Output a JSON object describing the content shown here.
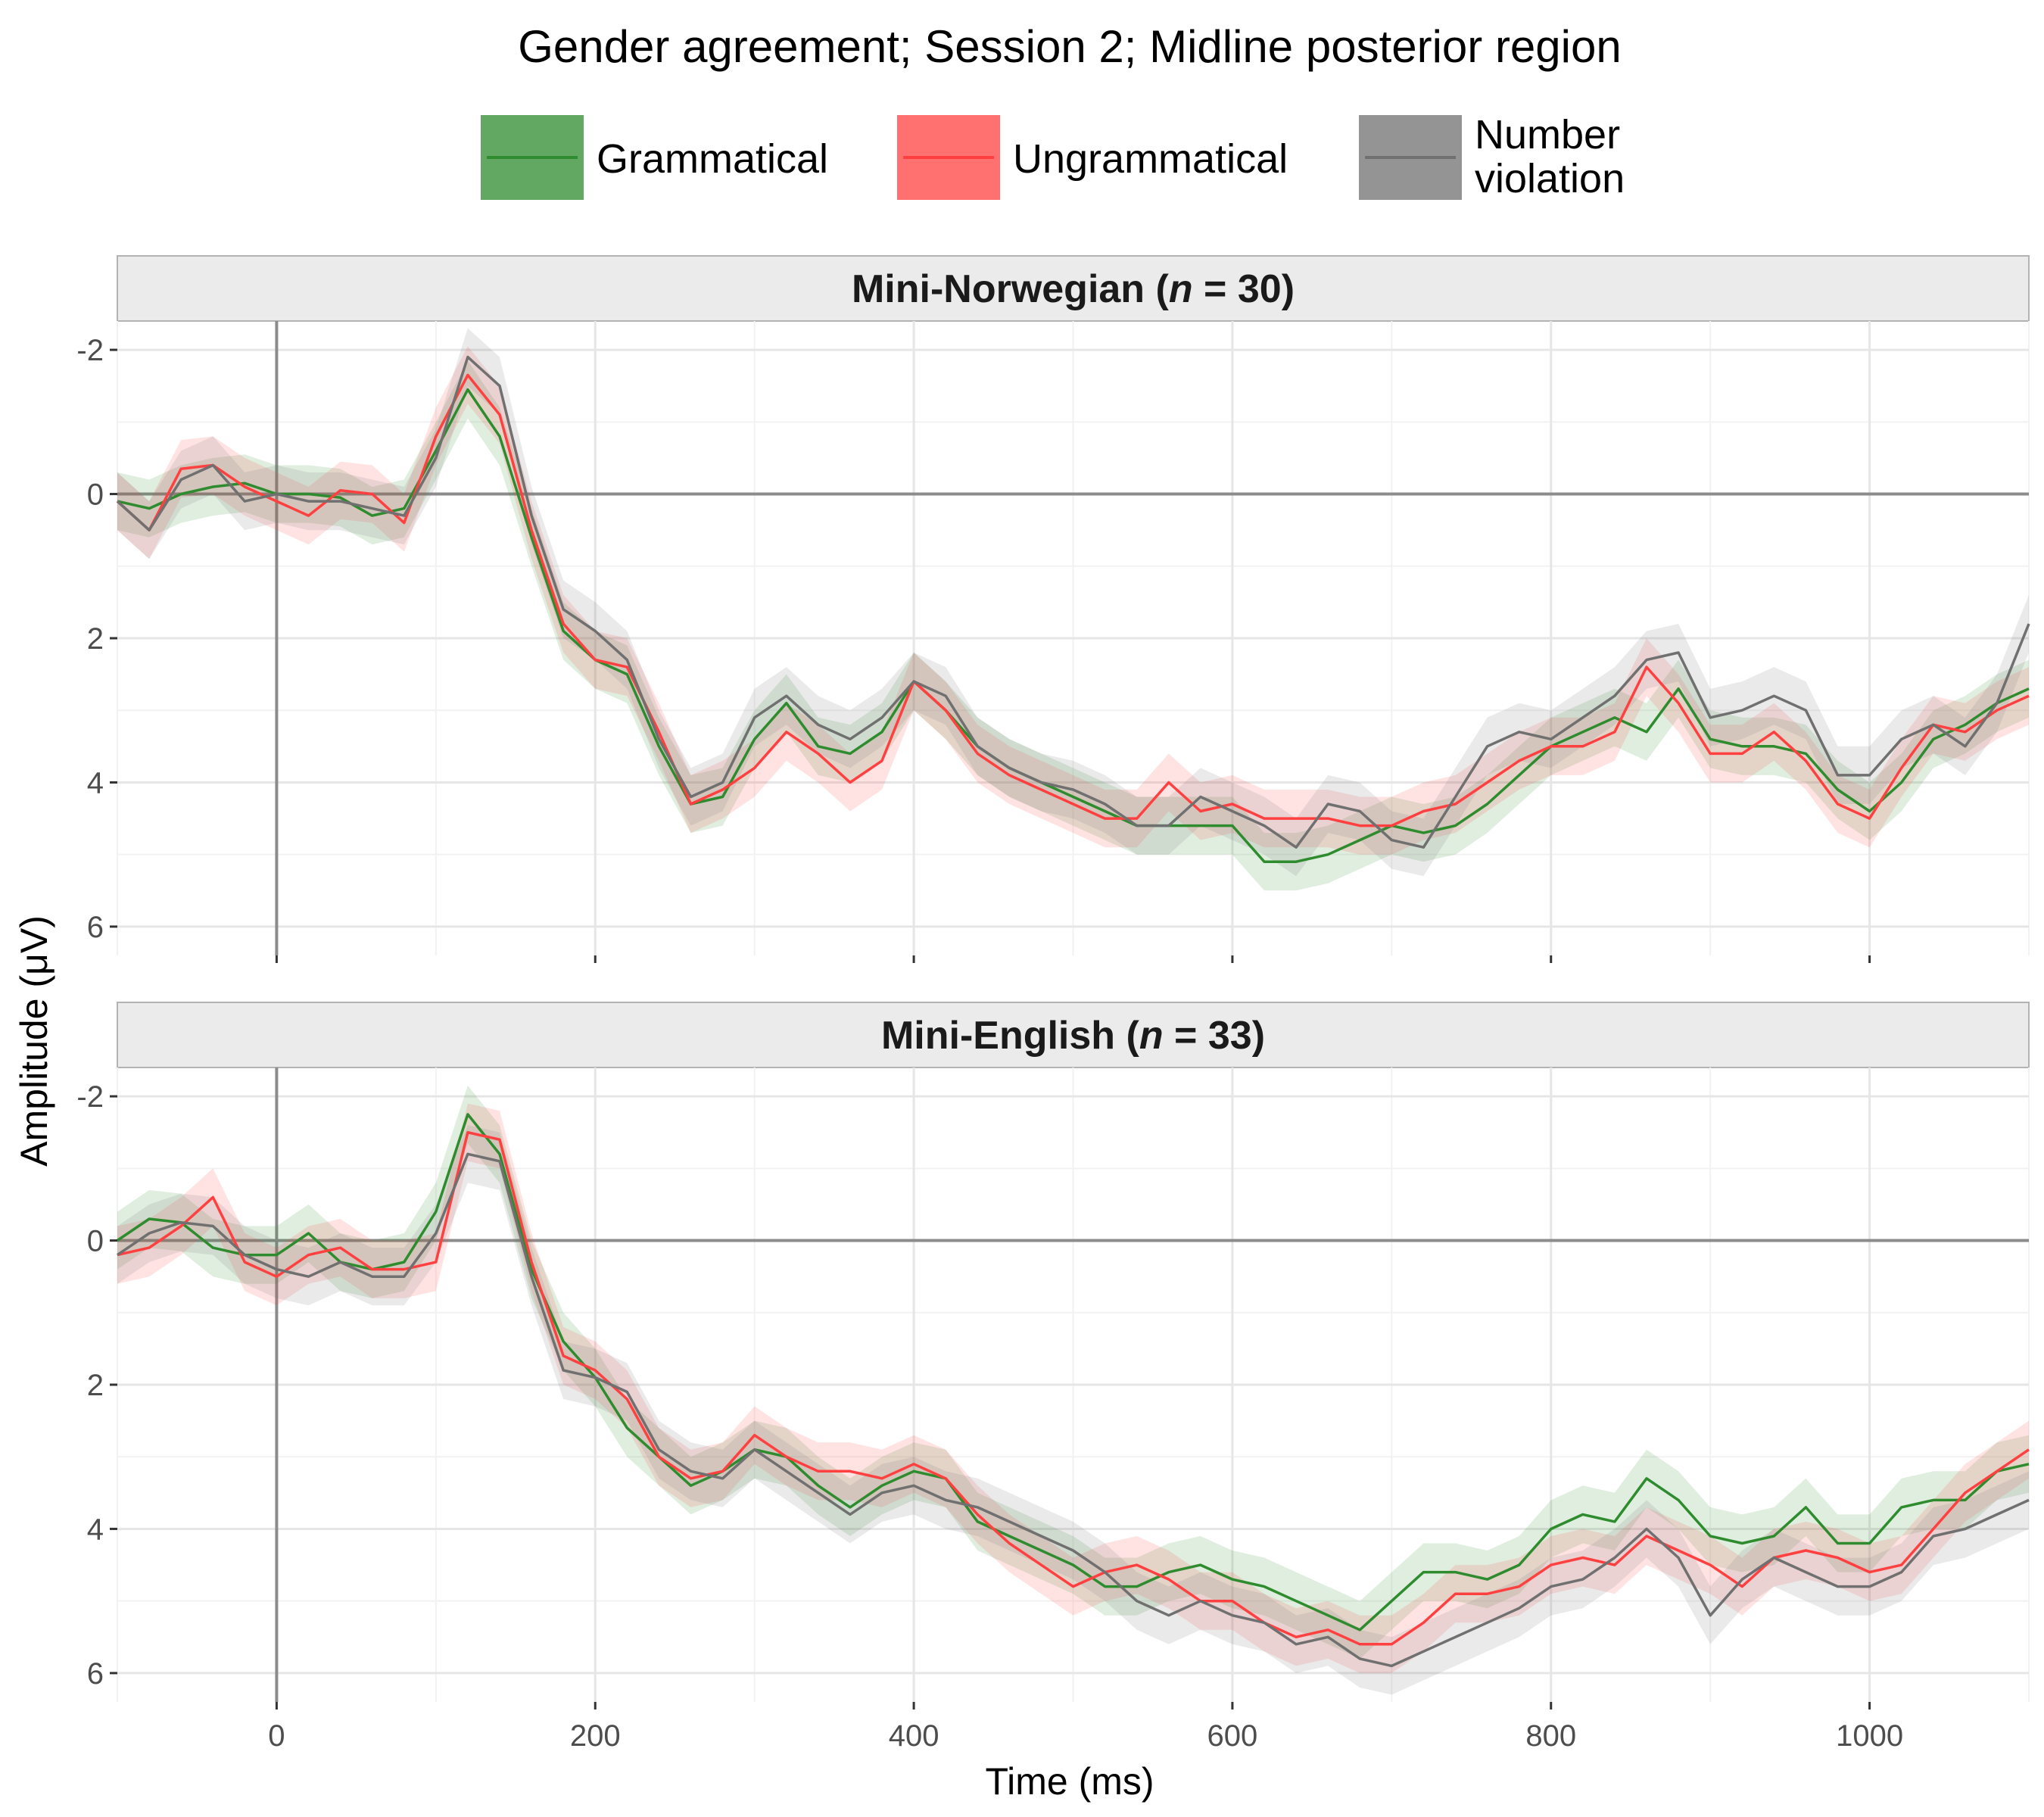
{
  "chart_data": {
    "type": "line",
    "title": "Gender agreement; Session 2; Midline posterior region",
    "xlabel": "Time (ms)",
    "ylabel": "Amplitude (μV)",
    "xlim": [
      -100,
      1100
    ],
    "ylim": [
      -2.4,
      6.4
    ],
    "y_reversed": true,
    "xticks": [
      0,
      200,
      400,
      600,
      800,
      1000
    ],
    "xtick_labels": [
      "0",
      "200",
      "400",
      "600",
      "800",
      "1000"
    ],
    "yticks": [
      -2,
      0,
      2,
      4,
      6
    ],
    "ytick_labels": [
      "-2",
      "0",
      "2",
      "4",
      "6"
    ],
    "grid": true,
    "legend_position": "top",
    "legend": [
      {
        "name": "Grammatical",
        "lines": [
          "Grammatical"
        ],
        "color": "#2e8b2e"
      },
      {
        "name": "Ungrammatical",
        "lines": [
          "Ungrammatical"
        ],
        "color": "#ff4040"
      },
      {
        "name": "Number violation",
        "lines": [
          "Number",
          "violation"
        ],
        "color": "#707070"
      }
    ],
    "ribbon_halfwidth_uv": 0.4,
    "panels": [
      {
        "label_pre": "Mini-Norwegian (",
        "label_n": "n",
        "label_post": " = 30)",
        "x": [
          -100,
          -80,
          -60,
          -40,
          -20,
          0,
          20,
          40,
          60,
          80,
          100,
          120,
          140,
          160,
          180,
          200,
          220,
          240,
          260,
          280,
          300,
          320,
          340,
          360,
          380,
          400,
          420,
          440,
          460,
          480,
          500,
          520,
          540,
          560,
          580,
          600,
          620,
          640,
          660,
          680,
          700,
          720,
          740,
          760,
          780,
          800,
          820,
          840,
          860,
          880,
          900,
          920,
          940,
          960,
          980,
          1000,
          1020,
          1040,
          1060,
          1080,
          1100
        ],
        "series": [
          {
            "name": "Grammatical",
            "color": "#2e8b2e",
            "values": [
              0.1,
              0.2,
              0.0,
              -0.1,
              -0.15,
              0.0,
              0.0,
              0.05,
              0.3,
              0.2,
              -0.6,
              -1.45,
              -0.8,
              0.6,
              1.9,
              2.3,
              2.5,
              3.5,
              4.3,
              4.2,
              3.4,
              2.9,
              3.5,
              3.6,
              3.3,
              2.6,
              3.0,
              3.5,
              3.8,
              4.0,
              4.2,
              4.4,
              4.6,
              4.6,
              4.6,
              4.6,
              5.1,
              5.1,
              5.0,
              4.8,
              4.6,
              4.7,
              4.6,
              4.3,
              3.9,
              3.5,
              3.3,
              3.1,
              3.3,
              2.7,
              3.4,
              3.5,
              3.5,
              3.6,
              4.1,
              4.4,
              4.0,
              3.4,
              3.2,
              2.9,
              2.7
            ]
          },
          {
            "name": "Ungrammatical",
            "color": "#ff4040",
            "values": [
              0.1,
              0.5,
              -0.35,
              -0.4,
              -0.1,
              0.1,
              0.3,
              -0.05,
              0.0,
              0.4,
              -0.8,
              -1.65,
              -1.1,
              0.5,
              1.8,
              2.3,
              2.4,
              3.3,
              4.3,
              4.1,
              3.8,
              3.3,
              3.6,
              4.0,
              3.7,
              2.6,
              3.0,
              3.6,
              3.9,
              4.1,
              4.3,
              4.5,
              4.5,
              4.0,
              4.4,
              4.3,
              4.5,
              4.5,
              4.5,
              4.6,
              4.6,
              4.4,
              4.3,
              4.0,
              3.7,
              3.5,
              3.5,
              3.3,
              2.4,
              2.9,
              3.6,
              3.6,
              3.3,
              3.7,
              4.3,
              4.5,
              3.8,
              3.2,
              3.3,
              3.0,
              2.8
            ]
          },
          {
            "name": "Number violation",
            "color": "#707070",
            "values": [
              0.1,
              0.5,
              -0.2,
              -0.4,
              0.1,
              0.0,
              0.1,
              0.1,
              0.2,
              0.3,
              -0.5,
              -1.9,
              -1.5,
              0.3,
              1.6,
              1.9,
              2.3,
              3.4,
              4.2,
              4.0,
              3.1,
              2.8,
              3.2,
              3.4,
              3.1,
              2.6,
              2.8,
              3.5,
              3.8,
              4.0,
              4.1,
              4.3,
              4.6,
              4.6,
              4.2,
              4.4,
              4.6,
              4.9,
              4.3,
              4.4,
              4.8,
              4.9,
              4.2,
              3.5,
              3.3,
              3.4,
              3.1,
              2.8,
              2.3,
              2.2,
              3.1,
              3.0,
              2.8,
              3.0,
              3.9,
              3.9,
              3.4,
              3.2,
              3.5,
              2.9,
              1.8
            ]
          }
        ]
      },
      {
        "label_pre": "Mini-English (",
        "label_n": "n",
        "label_post": " = 33)",
        "x": [
          -100,
          -80,
          -60,
          -40,
          -20,
          0,
          20,
          40,
          60,
          80,
          100,
          120,
          140,
          160,
          180,
          200,
          220,
          240,
          260,
          280,
          300,
          320,
          340,
          360,
          380,
          400,
          420,
          440,
          460,
          480,
          500,
          520,
          540,
          560,
          580,
          600,
          620,
          640,
          660,
          680,
          700,
          720,
          740,
          760,
          780,
          800,
          820,
          840,
          860,
          880,
          900,
          920,
          940,
          960,
          980,
          1000,
          1020,
          1040,
          1060,
          1080,
          1100
        ],
        "series": [
          {
            "name": "Grammatical",
            "color": "#2e8b2e",
            "values": [
              0.0,
              -0.3,
              -0.25,
              0.1,
              0.2,
              0.2,
              -0.1,
              0.3,
              0.4,
              0.3,
              -0.4,
              -1.75,
              -1.2,
              0.4,
              1.4,
              1.9,
              2.6,
              3.0,
              3.4,
              3.2,
              2.9,
              3.0,
              3.4,
              3.7,
              3.4,
              3.2,
              3.3,
              3.9,
              4.1,
              4.3,
              4.5,
              4.8,
              4.8,
              4.6,
              4.5,
              4.7,
              4.8,
              5.0,
              5.2,
              5.4,
              5.0,
              4.6,
              4.6,
              4.7,
              4.5,
              4.0,
              3.8,
              3.9,
              3.3,
              3.6,
              4.1,
              4.2,
              4.1,
              3.7,
              4.2,
              4.2,
              3.7,
              3.6,
              3.6,
              3.2,
              3.1
            ]
          },
          {
            "name": "Ungrammatical",
            "color": "#ff4040",
            "values": [
              0.2,
              0.1,
              -0.2,
              -0.6,
              0.3,
              0.5,
              0.2,
              0.1,
              0.4,
              0.4,
              0.3,
              -1.5,
              -1.4,
              0.3,
              1.6,
              1.8,
              2.2,
              3.0,
              3.3,
              3.2,
              2.7,
              3.0,
              3.2,
              3.2,
              3.3,
              3.1,
              3.3,
              3.8,
              4.2,
              4.5,
              4.8,
              4.6,
              4.5,
              4.7,
              5.0,
              5.0,
              5.3,
              5.5,
              5.4,
              5.6,
              5.6,
              5.3,
              4.9,
              4.9,
              4.8,
              4.5,
              4.4,
              4.5,
              4.1,
              4.3,
              4.5,
              4.8,
              4.4,
              4.3,
              4.4,
              4.6,
              4.5,
              4.0,
              3.5,
              3.2,
              2.9
            ]
          },
          {
            "name": "Number violation",
            "color": "#707070",
            "values": [
              0.2,
              -0.1,
              -0.25,
              -0.2,
              0.2,
              0.4,
              0.5,
              0.3,
              0.5,
              0.5,
              -0.1,
              -1.2,
              -1.1,
              0.5,
              1.8,
              1.9,
              2.1,
              2.9,
              3.2,
              3.3,
              2.9,
              3.2,
              3.5,
              3.8,
              3.5,
              3.4,
              3.6,
              3.7,
              3.9,
              4.1,
              4.3,
              4.6,
              5.0,
              5.2,
              5.0,
              5.2,
              5.3,
              5.6,
              5.5,
              5.8,
              5.9,
              5.7,
              5.5,
              5.3,
              5.1,
              4.8,
              4.7,
              4.4,
              4.0,
              4.4,
              5.2,
              4.7,
              4.4,
              4.6,
              4.8,
              4.8,
              4.6,
              4.1,
              4.0,
              3.8,
              3.6
            ]
          }
        ]
      }
    ]
  }
}
